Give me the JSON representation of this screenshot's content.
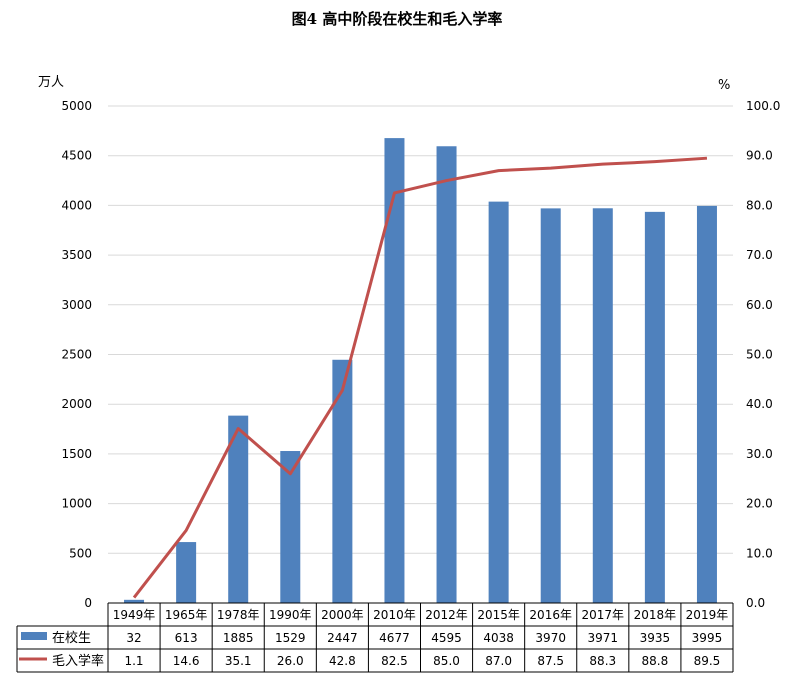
{
  "chart_data": {
    "title": "图4  高中阶段在校生和毛入学率",
    "type": "bar",
    "categories": [
      "1949年",
      "1965年",
      "1978年",
      "1990年",
      "2000年",
      "2010年",
      "2012年",
      "2015年",
      "2016年",
      "2017年",
      "2018年",
      "2019年"
    ],
    "series": [
      {
        "name": "在校生",
        "type": "bar",
        "axis": "left",
        "values": [
          32,
          613,
          1885,
          1529,
          2447,
          4677,
          4595,
          4038,
          3970,
          3971,
          3935,
          3995
        ],
        "value_labels": [
          "32",
          "613",
          "1885",
          "1529",
          "2447",
          "4677",
          "4595",
          "4038",
          "3970",
          "3971",
          "3935",
          "3995"
        ]
      },
      {
        "name": "毛入学率",
        "type": "line",
        "axis": "right",
        "values": [
          1.1,
          14.6,
          35.1,
          26.0,
          42.8,
          82.5,
          85.0,
          87.0,
          87.5,
          88.3,
          88.8,
          89.5
        ],
        "value_labels": [
          "1.1",
          "14.6",
          "35.1",
          "26.0",
          "42.8",
          "82.5",
          "85.0",
          "87.0",
          "87.5",
          "88.3",
          "88.8",
          "89.5"
        ]
      }
    ],
    "ylabel": "万人",
    "y2label": "%",
    "ylim": [
      0,
      5000
    ],
    "y2lim": [
      0,
      100
    ],
    "yticks": [
      "0",
      "500",
      "1000",
      "1500",
      "2000",
      "2500",
      "3000",
      "3500",
      "4000",
      "4500",
      "5000"
    ],
    "y2ticks": [
      "0.0",
      "10.0",
      "20.0",
      "30.0",
      "40.0",
      "50.0",
      "60.0",
      "70.0",
      "80.0",
      "90.0",
      "100.0"
    ],
    "grid": true,
    "legend": "data-table"
  },
  "colors": {
    "bar": "#4f81bd",
    "line": "#c0504d",
    "grid": "#d9d9d9",
    "axis": "#000000"
  }
}
